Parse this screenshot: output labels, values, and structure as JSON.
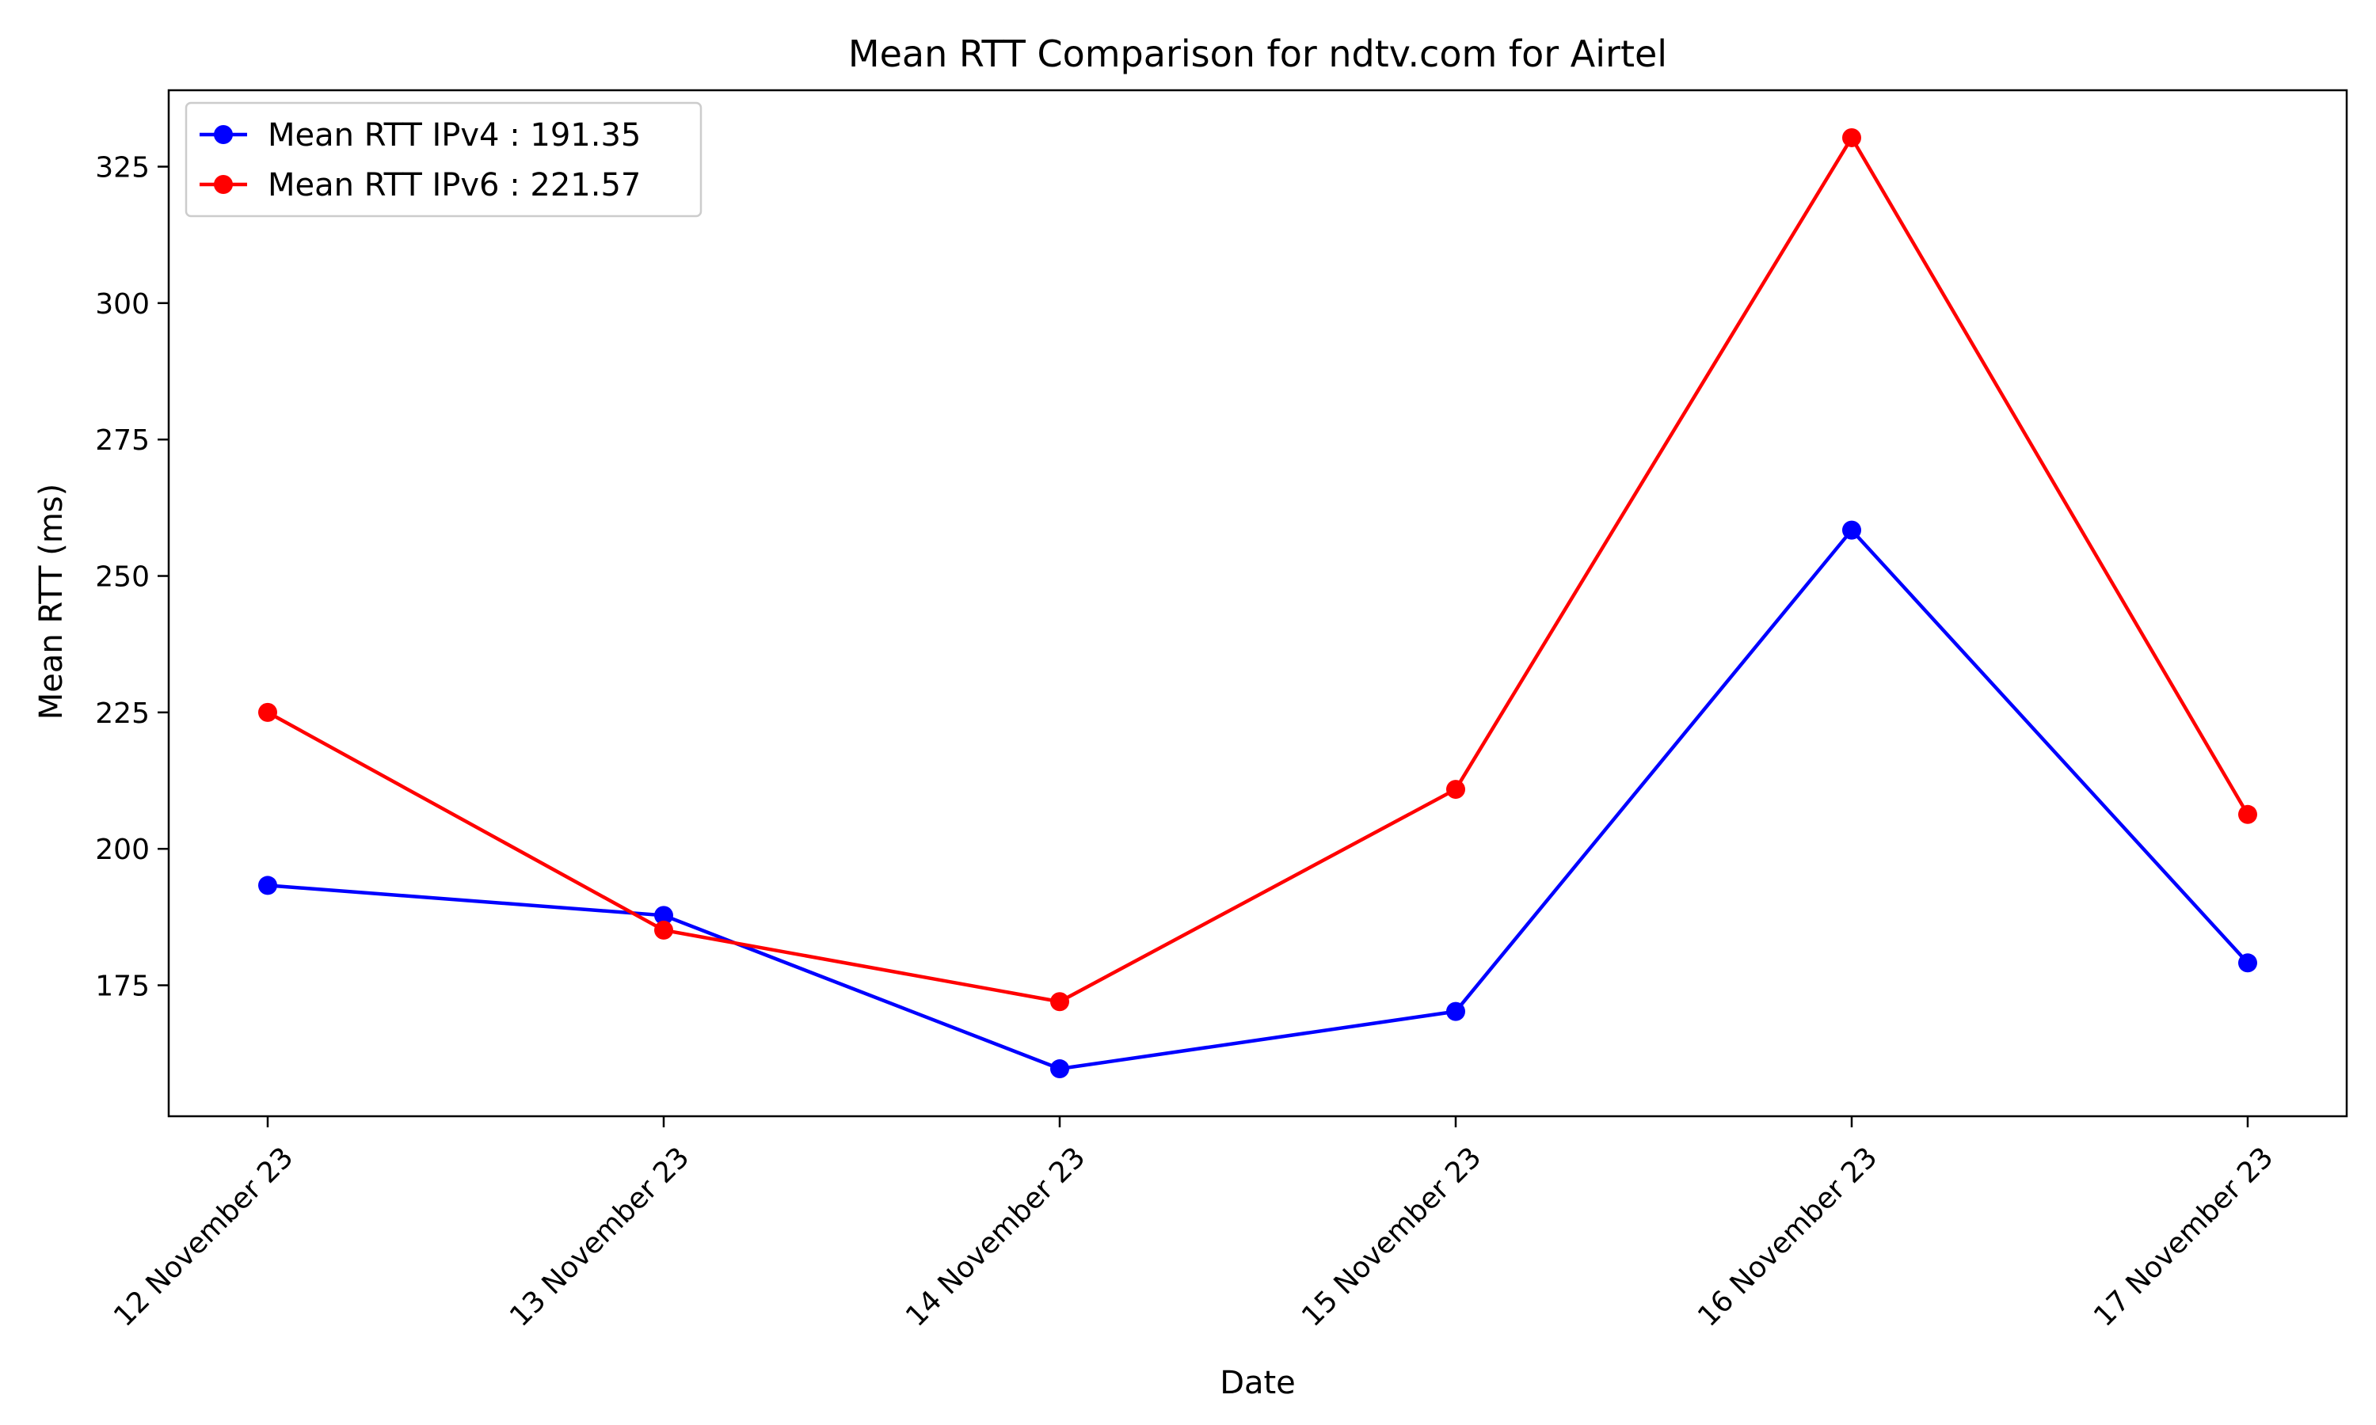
{
  "chart_data": {
    "type": "line",
    "title": "Mean RTT Comparison for ndtv.com for Airtel",
    "xlabel": "Date",
    "ylabel": "Mean RTT (ms)",
    "categories": [
      "12 November 23",
      "13 November 23",
      "14 November 23",
      "15 November 23",
      "16 November 23",
      "17 November 23"
    ],
    "yticks": [
      175,
      200,
      225,
      250,
      275,
      300,
      325
    ],
    "ylim": [
      151,
      339
    ],
    "grid": false,
    "legend_position": "top-left",
    "series": [
      {
        "name": "Mean RTT IPv4 : 191.35",
        "color": "#0000ff",
        "marker": "circle",
        "values": [
          193.3,
          187.8,
          159.7,
          170.2,
          258.4,
          179.1
        ]
      },
      {
        "name": "Mean RTT IPv6 : 221.57",
        "color": "#ff0000",
        "marker": "circle",
        "values": [
          225.0,
          185.1,
          172.0,
          210.9,
          330.3,
          206.3
        ]
      }
    ]
  }
}
